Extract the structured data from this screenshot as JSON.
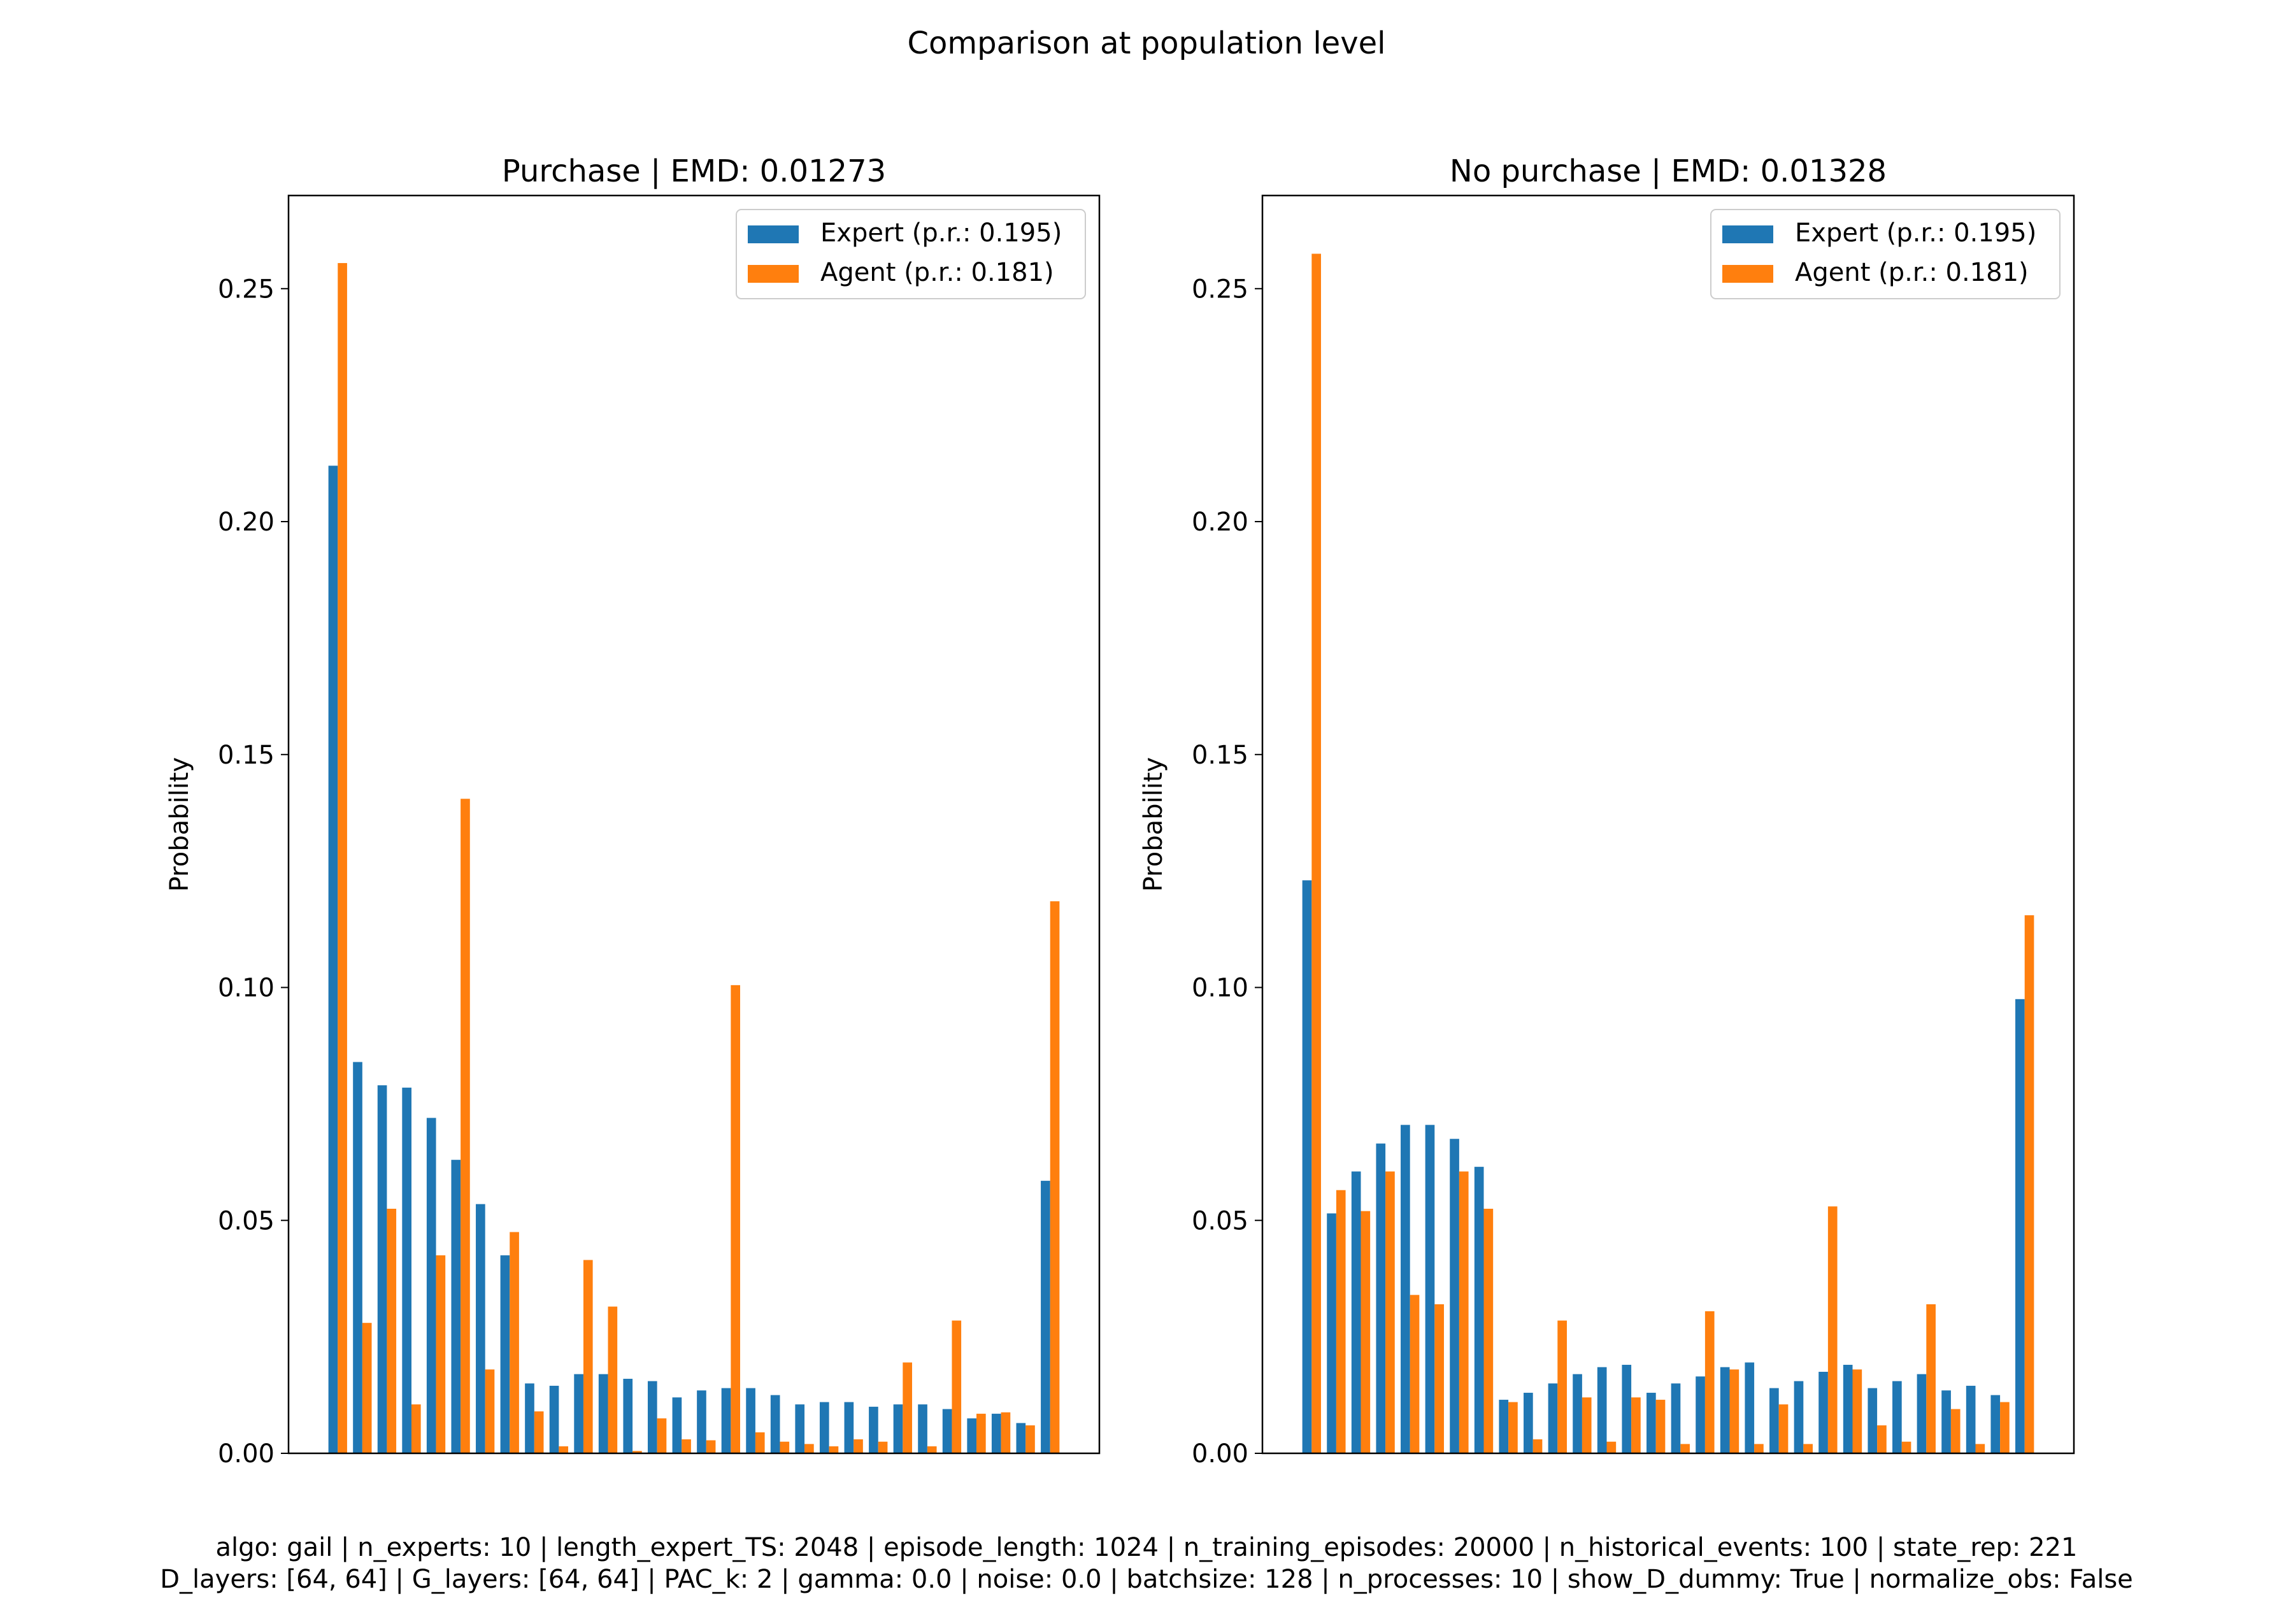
{
  "figure": {
    "suptitle": "Comparison at population level",
    "footer_line1": "algo: gail | n_experts: 10 | length_expert_TS: 2048 | episode_length: 1024 | n_training_episodes: 20000 | n_historical_events: 100 | state_rep: 221",
    "footer_line2": "D_layers: [64, 64] | G_layers: [64, 64] | PAC_k: 2 | gamma: 0.0 | noise: 0.0 | batchsize: 128 | n_processes: 10 | show_D_dummy: True | normalize_obs: False"
  },
  "colors": {
    "expert": "#1f77b4",
    "agent": "#ff7f0e"
  },
  "chart_data": [
    {
      "type": "bar",
      "title": "Purchase | EMD: 0.01273",
      "xlabel": "",
      "ylabel": "Probability",
      "ylim": [
        0,
        0.27
      ],
      "yticks": [
        "0.00",
        "0.05",
        "0.10",
        "0.15",
        "0.20",
        "0.25"
      ],
      "legend_position": "top-right",
      "series": [
        {
          "name": "Expert (p.r.: 0.195)",
          "values": [
            0.212,
            0.084,
            0.079,
            0.0785,
            0.072,
            0.063,
            0.0535,
            0.0425,
            0.015,
            0.0145,
            0.017,
            0.017,
            0.016,
            0.0155,
            0.012,
            0.0135,
            0.014,
            0.014,
            0.0125,
            0.0105,
            0.011,
            0.011,
            0.01,
            0.0105,
            0.0105,
            0.0095,
            0.0075,
            0.0085,
            0.0065,
            0.0585
          ]
        },
        {
          "name": "Agent (p.r.: 0.181)",
          "values": [
            0.2555,
            0.028,
            0.0525,
            0.0105,
            0.0425,
            0.1405,
            0.018,
            0.0475,
            0.009,
            0.0015,
            0.0415,
            0.0315,
            0.0005,
            0.0075,
            0.003,
            0.0028,
            0.1005,
            0.0045,
            0.0025,
            0.002,
            0.0015,
            0.003,
            0.0025,
            0.0195,
            0.0015,
            0.0285,
            0.0085,
            0.0088,
            0.006,
            0.1185
          ]
        }
      ]
    },
    {
      "type": "bar",
      "title": "No purchase | EMD: 0.01328",
      "xlabel": "",
      "ylabel": "Probability",
      "ylim": [
        0,
        0.27
      ],
      "yticks": [
        "0.00",
        "0.05",
        "0.10",
        "0.15",
        "0.20",
        "0.25"
      ],
      "legend_position": "top-right",
      "series": [
        {
          "name": "Expert (p.r.: 0.195)",
          "values": [
            0.123,
            0.0515,
            0.0605,
            0.0665,
            0.0705,
            0.0705,
            0.0675,
            0.0615,
            0.0115,
            0.013,
            0.015,
            0.017,
            0.0185,
            0.019,
            0.013,
            0.015,
            0.0165,
            0.0185,
            0.0195,
            0.014,
            0.0155,
            0.0175,
            0.019,
            0.014,
            0.0155,
            0.017,
            0.0135,
            0.0145,
            0.0125,
            0.0975
          ]
        },
        {
          "name": "Agent (p.r.: 0.181)",
          "values": [
            0.2575,
            0.0565,
            0.052,
            0.0605,
            0.034,
            0.032,
            0.0605,
            0.0525,
            0.011,
            0.003,
            0.0285,
            0.012,
            0.0025,
            0.012,
            0.0115,
            0.002,
            0.0305,
            0.018,
            0.002,
            0.0105,
            0.002,
            0.053,
            0.018,
            0.006,
            0.0025,
            0.032,
            0.0095,
            0.002,
            0.011,
            0.1155
          ]
        }
      ]
    }
  ]
}
